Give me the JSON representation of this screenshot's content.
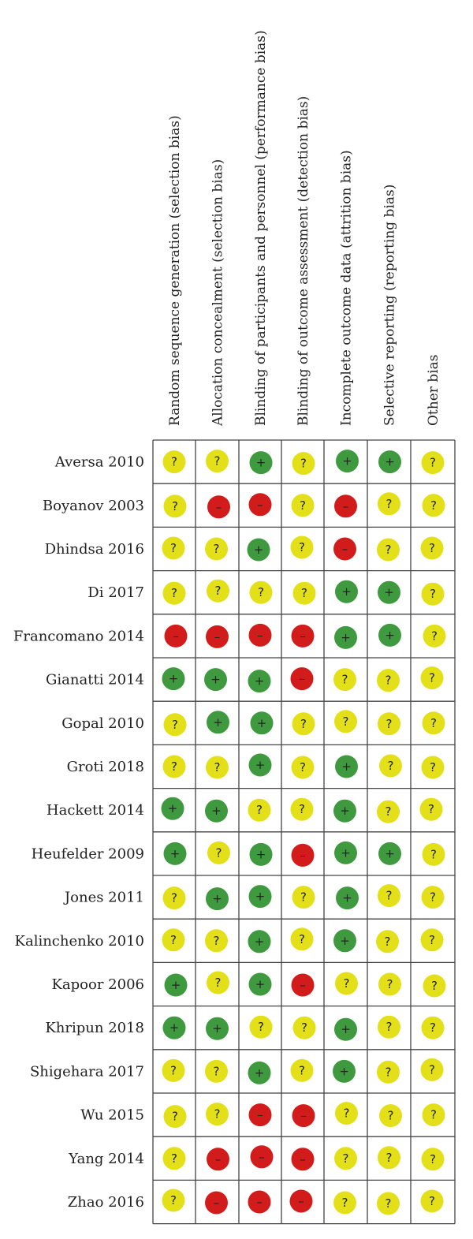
{
  "chart_data": {
    "type": "table",
    "columns": [
      "Random sequence generation (selection bias)",
      "Allocation concealment (selection bias)",
      "Blinding of participants and personnel (performance bias)",
      "Blinding of outcome assessment (detection bias)",
      "Incomplete outcome data (attrition bias)",
      "Selective reporting (reporting bias)",
      "Other bias"
    ],
    "rows": [
      {
        "study": "Aversa 2010",
        "ratings": [
          "unclear",
          "unclear",
          "low",
          "unclear",
          "low",
          "low",
          "unclear"
        ]
      },
      {
        "study": "Boyanov 2003",
        "ratings": [
          "unclear",
          "high",
          "high",
          "unclear",
          "high",
          "unclear",
          "unclear"
        ]
      },
      {
        "study": "Dhindsa 2016",
        "ratings": [
          "unclear",
          "unclear",
          "low",
          "unclear",
          "high",
          "unclear",
          "unclear"
        ]
      },
      {
        "study": "Di 2017",
        "ratings": [
          "unclear",
          "unclear",
          "unclear",
          "unclear",
          "low",
          "low",
          "unclear"
        ]
      },
      {
        "study": "Francomano 2014",
        "ratings": [
          "high",
          "high",
          "high",
          "high",
          "low",
          "low",
          "unclear"
        ]
      },
      {
        "study": "Gianatti 2014",
        "ratings": [
          "low",
          "low",
          "low",
          "high",
          "unclear",
          "unclear",
          "unclear"
        ]
      },
      {
        "study": "Gopal 2010",
        "ratings": [
          "unclear",
          "low",
          "low",
          "unclear",
          "unclear",
          "unclear",
          "unclear"
        ]
      },
      {
        "study": "Groti 2018",
        "ratings": [
          "unclear",
          "unclear",
          "low",
          "unclear",
          "low",
          "unclear",
          "unclear"
        ]
      },
      {
        "study": "Hackett 2014",
        "ratings": [
          "low",
          "low",
          "unclear",
          "unclear",
          "low",
          "unclear",
          "unclear"
        ]
      },
      {
        "study": "Heufelder 2009",
        "ratings": [
          "low",
          "unclear",
          "low",
          "high",
          "low",
          "low",
          "unclear"
        ]
      },
      {
        "study": "Jones 2011",
        "ratings": [
          "unclear",
          "low",
          "low",
          "unclear",
          "low",
          "unclear",
          "unclear"
        ]
      },
      {
        "study": "Kalinchenko 2010",
        "ratings": [
          "unclear",
          "unclear",
          "low",
          "unclear",
          "low",
          "unclear",
          "unclear"
        ]
      },
      {
        "study": "Kapoor 2006",
        "ratings": [
          "low",
          "unclear",
          "low",
          "high",
          "unclear",
          "unclear",
          "unclear"
        ]
      },
      {
        "study": "Khripun 2018",
        "ratings": [
          "low",
          "low",
          "unclear",
          "unclear",
          "low",
          "unclear",
          "unclear"
        ]
      },
      {
        "study": "Shigehara 2017",
        "ratings": [
          "unclear",
          "unclear",
          "low",
          "unclear",
          "low",
          "unclear",
          "unclear"
        ]
      },
      {
        "study": "Wu 2015",
        "ratings": [
          "unclear",
          "unclear",
          "high",
          "high",
          "unclear",
          "unclear",
          "unclear"
        ]
      },
      {
        "study": "Yang 2014",
        "ratings": [
          "unclear",
          "high",
          "high",
          "high",
          "unclear",
          "unclear",
          "unclear"
        ]
      },
      {
        "study": "Zhao 2016",
        "ratings": [
          "unclear",
          "high",
          "high",
          "high",
          "unclear",
          "unclear",
          "unclear"
        ]
      }
    ],
    "symbols": {
      "low": "+",
      "unclear": "?",
      "high": "–"
    },
    "colors": {
      "low": "#3f9a3f",
      "unclear": "#e3e01a",
      "high": "#d21b1b"
    }
  }
}
